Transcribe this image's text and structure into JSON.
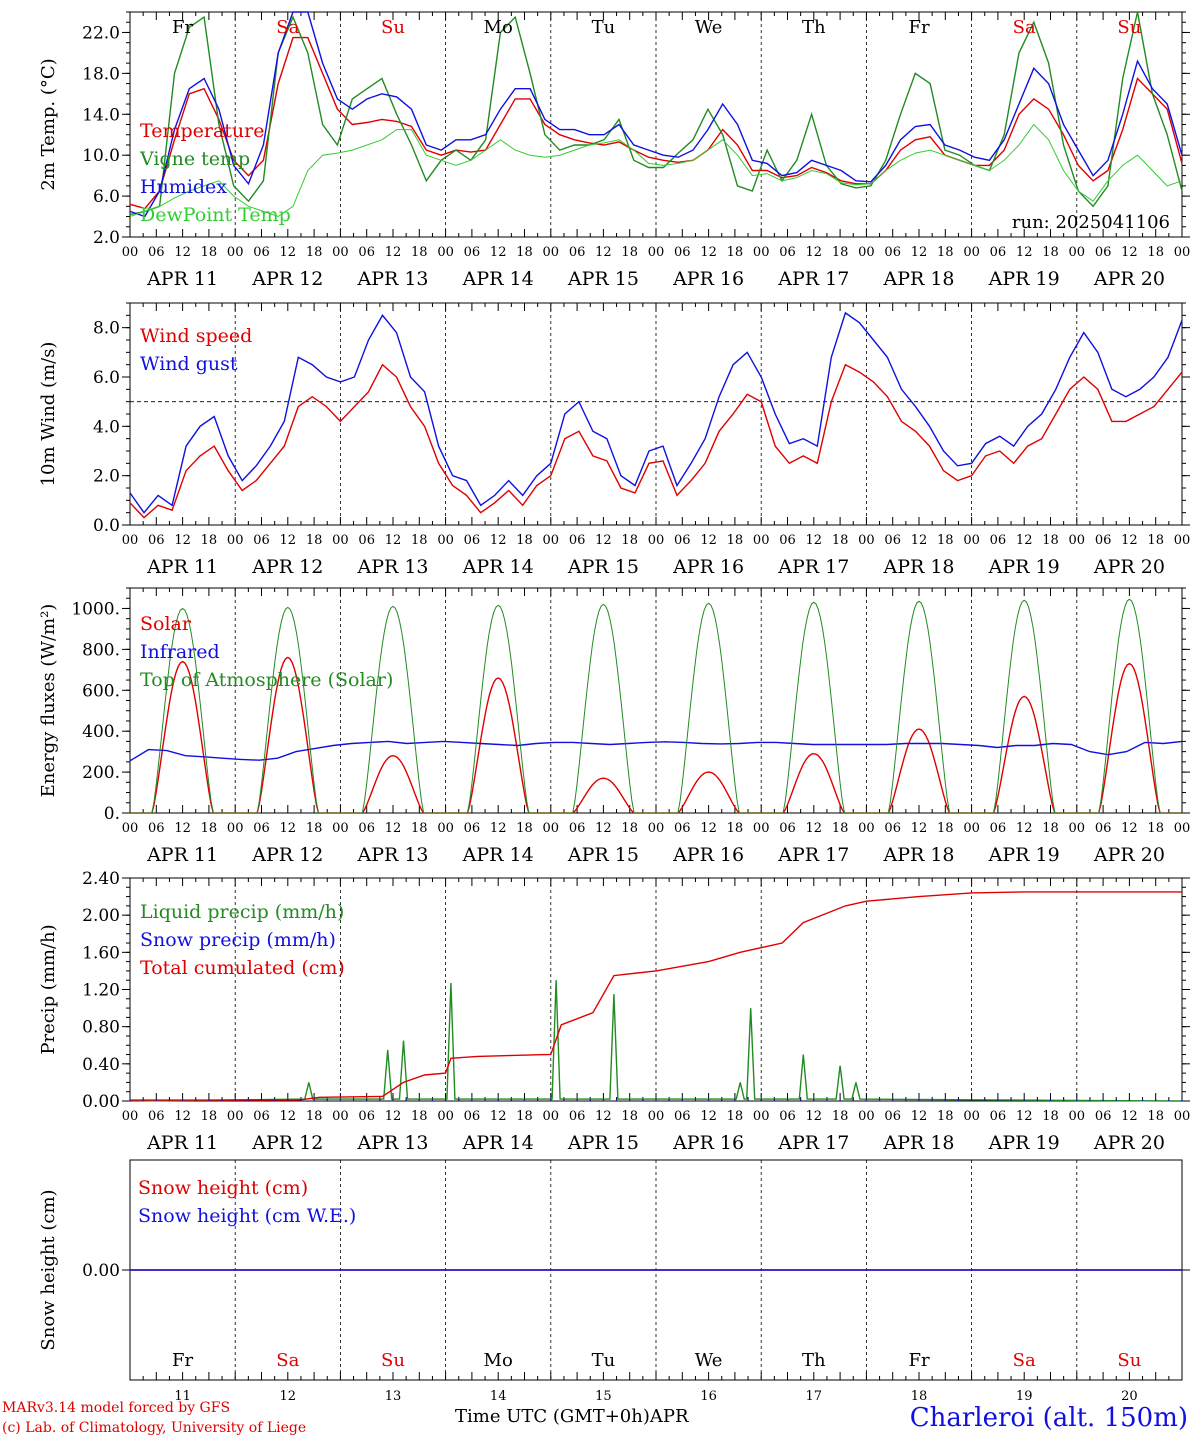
{
  "chart_data": [
    {
      "id": "temp",
      "type": "line",
      "ylabel": "2m Temp. (°C)",
      "ylim": [
        2,
        24
      ],
      "yticks": [
        2,
        6,
        10,
        14,
        18,
        22
      ],
      "ytick_labels": [
        "2.0",
        "6.0",
        "10.0",
        "14.0",
        "18.0",
        "22.0"
      ],
      "hline": null,
      "annotation": "run: 2025041106",
      "series": [
        {
          "name": "Temperature",
          "color": "#e00000",
          "values": [
            5.2,
            4.8,
            6.5,
            11.5,
            16,
            16.5,
            13.5,
            9.5,
            8,
            9.5,
            17,
            21.5,
            21.5,
            18,
            14.5,
            13,
            13.2,
            13.5,
            13.3,
            12.8,
            10.5,
            10,
            10.5,
            10.3,
            10.5,
            13,
            15.5,
            15.5,
            13,
            12,
            11.5,
            11.2,
            11,
            11.3,
            10.5,
            9.8,
            9.5,
            9.3,
            9.5,
            10.5,
            12.5,
            11,
            8.5,
            8.5,
            7.8,
            8,
            8.8,
            8.3,
            7.5,
            7.2,
            7.2,
            8.5,
            10.5,
            11.5,
            11.8,
            10,
            9.5,
            9,
            9,
            10.5,
            14,
            15.5,
            14.5,
            12,
            9,
            7.5,
            8.5,
            12.5,
            17.5,
            16,
            14.5,
            9.2
          ]
        },
        {
          "name": "Vigne temp",
          "color": "#228b22",
          "values": [
            4.2,
            4.5,
            5,
            18,
            22.5,
            23.5,
            13,
            7,
            5.5,
            7.5,
            20,
            23.5,
            20,
            13,
            11,
            15.5,
            16.5,
            17.5,
            14,
            11,
            7.5,
            9.5,
            10.5,
            9.5,
            11.5,
            22,
            23.5,
            18,
            12,
            10.5,
            11,
            11,
            11.5,
            13.5,
            9.5,
            8.8,
            8.8,
            10.2,
            11.5,
            14.5,
            12,
            7,
            6.5,
            10.5,
            7.5,
            9.5,
            14,
            9,
            7.2,
            6.8,
            7,
            9.5,
            14,
            18,
            17,
            10.5,
            10,
            9,
            8.5,
            12,
            20,
            23,
            19,
            11,
            6.5,
            5,
            7,
            17.5,
            24,
            16,
            12,
            6.5
          ]
        },
        {
          "name": "Humidex",
          "color": "#1010e0",
          "values": [
            4.5,
            4,
            6.5,
            12.5,
            16.5,
            17.5,
            14.5,
            9,
            7.2,
            11,
            20,
            24,
            24,
            19,
            15.5,
            14.5,
            15.5,
            16,
            15.7,
            14.5,
            11,
            10.5,
            11.5,
            11.5,
            12,
            14.5,
            16.5,
            16.5,
            13.5,
            12.5,
            12.5,
            12,
            12,
            13,
            11,
            10.5,
            10,
            9.8,
            10.5,
            12.5,
            15,
            13,
            9.5,
            9.2,
            8,
            8.3,
            9.5,
            9,
            8.5,
            7.5,
            7.4,
            9,
            11.5,
            12.8,
            13,
            11,
            10.5,
            9.8,
            9.5,
            11.5,
            15,
            18.5,
            17,
            13,
            10.5,
            8,
            9.5,
            14,
            19.2,
            16.5,
            15,
            10
          ]
        },
        {
          "name": "DewPoint Temp",
          "color": "#32cd32",
          "values": [
            4,
            4.5,
            5,
            5.8,
            6.5,
            7,
            7.5,
            6,
            5,
            4.5,
            4,
            5,
            8.5,
            10,
            10.2,
            10.5,
            11,
            11.5,
            12.5,
            12.5,
            10,
            9.5,
            9,
            9.5,
            10.5,
            11.5,
            10.5,
            10,
            9.8,
            10,
            10.5,
            11,
            11.2,
            11.5,
            10.5,
            9.2,
            9,
            9.2,
            9.5,
            10.5,
            11.5,
            10,
            8,
            8.2,
            7.5,
            7.8,
            8.5,
            8.2,
            7.3,
            7.1,
            7.2,
            8.5,
            9.5,
            10.2,
            10.5,
            10,
            9.5,
            9,
            8.5,
            9.5,
            11,
            13,
            11.5,
            8.5,
            6.5,
            5.5,
            7.5,
            9,
            10,
            8.5,
            7,
            7.5
          ]
        }
      ]
    },
    {
      "id": "wind",
      "type": "line",
      "ylabel": "10m Wind (m/s)",
      "ylim": [
        0,
        9
      ],
      "yticks": [
        0,
        2,
        4,
        6,
        8
      ],
      "ytick_labels": [
        "0.0",
        "2.0",
        "4.0",
        "6.0",
        "8.0"
      ],
      "hline": 5,
      "series": [
        {
          "name": "Wind speed",
          "color": "#e00000",
          "values": [
            0.9,
            0.3,
            0.8,
            0.6,
            2.2,
            2.8,
            3.2,
            2.2,
            1.4,
            1.8,
            2.5,
            3.2,
            4.8,
            5.2,
            4.8,
            4.2,
            4.8,
            5.4,
            6.5,
            6,
            4.8,
            4,
            2.5,
            1.6,
            1.2,
            0.5,
            0.9,
            1.4,
            0.8,
            1.6,
            2,
            3.5,
            3.8,
            2.8,
            2.6,
            1.5,
            1.3,
            2.5,
            2.6,
            1.2,
            1.8,
            2.5,
            3.8,
            4.5,
            5.3,
            5,
            3.2,
            2.5,
            2.8,
            2.5,
            5,
            6.5,
            6.2,
            5.8,
            5.2,
            4.2,
            3.8,
            3.2,
            2.2,
            1.8,
            2,
            2.8,
            3,
            2.5,
            3.2,
            3.5,
            4.5,
            5.5,
            6,
            5.5,
            4.2,
            4.2,
            4.5,
            4.8,
            5.5,
            6.2
          ]
        },
        {
          "name": "Wind gust",
          "color": "#1010e0",
          "values": [
            1.3,
            0.5,
            1.2,
            0.8,
            3.2,
            4,
            4.4,
            2.8,
            1.8,
            2.4,
            3.2,
            4.2,
            6.8,
            6.5,
            6,
            5.8,
            6,
            7.5,
            8.5,
            7.8,
            6,
            5.4,
            3.2,
            2,
            1.8,
            0.8,
            1.2,
            1.8,
            1.2,
            2,
            2.5,
            4.5,
            5,
            3.8,
            3.5,
            2,
            1.6,
            3,
            3.2,
            1.6,
            2.5,
            3.5,
            5.2,
            6.5,
            7,
            6,
            4.5,
            3.3,
            3.5,
            3.2,
            6.8,
            8.6,
            8.2,
            7.5,
            6.8,
            5.5,
            4.8,
            4,
            3,
            2.4,
            2.5,
            3.3,
            3.6,
            3.2,
            4,
            4.5,
            5.5,
            6.8,
            7.8,
            7,
            5.5,
            5.2,
            5.5,
            6,
            6.8,
            8.3
          ]
        }
      ]
    },
    {
      "id": "energy",
      "type": "line",
      "ylabel": "Energy fluxes (W/m²)",
      "ylim": [
        0,
        1100
      ],
      "yticks": [
        0,
        200,
        400,
        600,
        800,
        1000
      ],
      "ytick_labels": [
        "0.",
        "200.",
        "400.",
        "600.",
        "800.",
        "1000."
      ],
      "hline": null,
      "series": [
        {
          "name": "Solar",
          "color": "#e00000",
          "peaks": [
            740,
            760,
            280,
            660,
            170,
            200,
            290,
            410,
            570,
            730
          ]
        },
        {
          "name": "Infrared",
          "color": "#1010e0",
          "values": [
            255,
            310,
            305,
            280,
            275,
            268,
            262,
            258,
            268,
            300,
            315,
            330,
            340,
            345,
            350,
            340,
            345,
            350,
            345,
            340,
            335,
            330,
            340,
            345,
            345,
            340,
            335,
            340,
            345,
            348,
            345,
            340,
            338,
            340,
            345,
            345,
            340,
            335,
            335,
            335,
            335,
            335,
            340,
            340,
            340,
            335,
            330,
            320,
            330,
            330,
            340,
            335,
            300,
            285,
            300,
            345,
            340,
            350
          ]
        },
        {
          "name": "Top of Atmosphere (Solar)",
          "color": "#228b22",
          "peaks": [
            1000,
            1005,
            1010,
            1015,
            1020,
            1025,
            1030,
            1035,
            1040,
            1045
          ]
        }
      ]
    },
    {
      "id": "precip",
      "type": "line",
      "ylabel": "Precip (mm/h)",
      "ylim": [
        0,
        2.4
      ],
      "yticks": [
        0,
        0.4,
        0.8,
        1.2,
        1.6,
        2.0,
        2.4
      ],
      "ytick_labels": [
        "0.00",
        "0.40",
        "0.80",
        "1.20",
        "1.60",
        "2.00",
        "2.40"
      ],
      "hline": null,
      "series": [
        {
          "name": "Liquid precip (mm/h)",
          "color": "#228b22",
          "events": [
            [
              1.7,
              0.2
            ],
            [
              2.45,
              0.55
            ],
            [
              2.6,
              0.65
            ],
            [
              3.05,
              1.27
            ],
            [
              4.05,
              1.3
            ],
            [
              4.6,
              1.15
            ],
            [
              5.8,
              0.2
            ],
            [
              5.9,
              1.0
            ],
            [
              6.4,
              0.5
            ],
            [
              6.75,
              0.38
            ],
            [
              6.9,
              0.2
            ]
          ]
        },
        {
          "name": "Snow precip (mm/h)",
          "color": "#1010e0",
          "values": [
            0
          ]
        },
        {
          "name": "Total cumulated (cm)",
          "color": "#e00000",
          "points": [
            [
              0,
              0.01
            ],
            [
              1.6,
              0.01
            ],
            [
              1.8,
              0.04
            ],
            [
              2.4,
              0.05
            ],
            [
              2.6,
              0.2
            ],
            [
              2.8,
              0.28
            ],
            [
              3.0,
              0.3
            ],
            [
              3.05,
              0.46
            ],
            [
              3.3,
              0.48
            ],
            [
              4.0,
              0.5
            ],
            [
              4.1,
              0.82
            ],
            [
              4.4,
              0.95
            ],
            [
              4.6,
              1.35
            ],
            [
              5.0,
              1.4
            ],
            [
              5.5,
              1.5
            ],
            [
              5.8,
              1.6
            ],
            [
              6.2,
              1.7
            ],
            [
              6.4,
              1.92
            ],
            [
              6.8,
              2.1
            ],
            [
              7.0,
              2.15
            ],
            [
              7.5,
              2.2
            ],
            [
              8.0,
              2.24
            ],
            [
              8.5,
              2.25
            ],
            [
              10,
              2.25
            ]
          ]
        }
      ]
    },
    {
      "id": "snow",
      "type": "line",
      "ylabel": "Snow height (cm)",
      "ylim": [
        -1,
        1
      ],
      "yticks": [
        0
      ],
      "ytick_labels": [
        "0.00"
      ],
      "hline": null,
      "series": [
        {
          "name": "Snow height (cm)",
          "color": "#e00000",
          "values": [
            0,
            0
          ]
        },
        {
          "name": "Snow height (cm W.E.)",
          "color": "#1010e0",
          "values": [
            0,
            0
          ]
        }
      ]
    }
  ],
  "x_axis": {
    "hour_labels": [
      "00",
      "06",
      "12",
      "18"
    ],
    "date_labels": [
      "APR 11",
      "APR 12",
      "APR 13",
      "APR 14",
      "APR 15",
      "APR 16",
      "APR 17",
      "APR 18",
      "APR 19",
      "APR 20"
    ],
    "end_label": "00"
  },
  "weekdays": [
    "Fr",
    "Sa",
    "Su",
    "Mo",
    "Tu",
    "We",
    "Th",
    "Fr",
    "Sa",
    "Su"
  ],
  "weekend_color": "#e00000",
  "weekday_color": "#000000",
  "day_numbers": [
    "11",
    "12",
    "13",
    "14",
    "15",
    "16",
    "17",
    "18",
    "19",
    "20"
  ],
  "footer": {
    "model": "MARv3.14 model forced by GFS",
    "copyright": "(c) Lab. of Climatology, University of Liege",
    "time_label": "Time UTC (GMT+0h)",
    "month": "APR",
    "station": "Charleroi (alt. 150m)"
  }
}
